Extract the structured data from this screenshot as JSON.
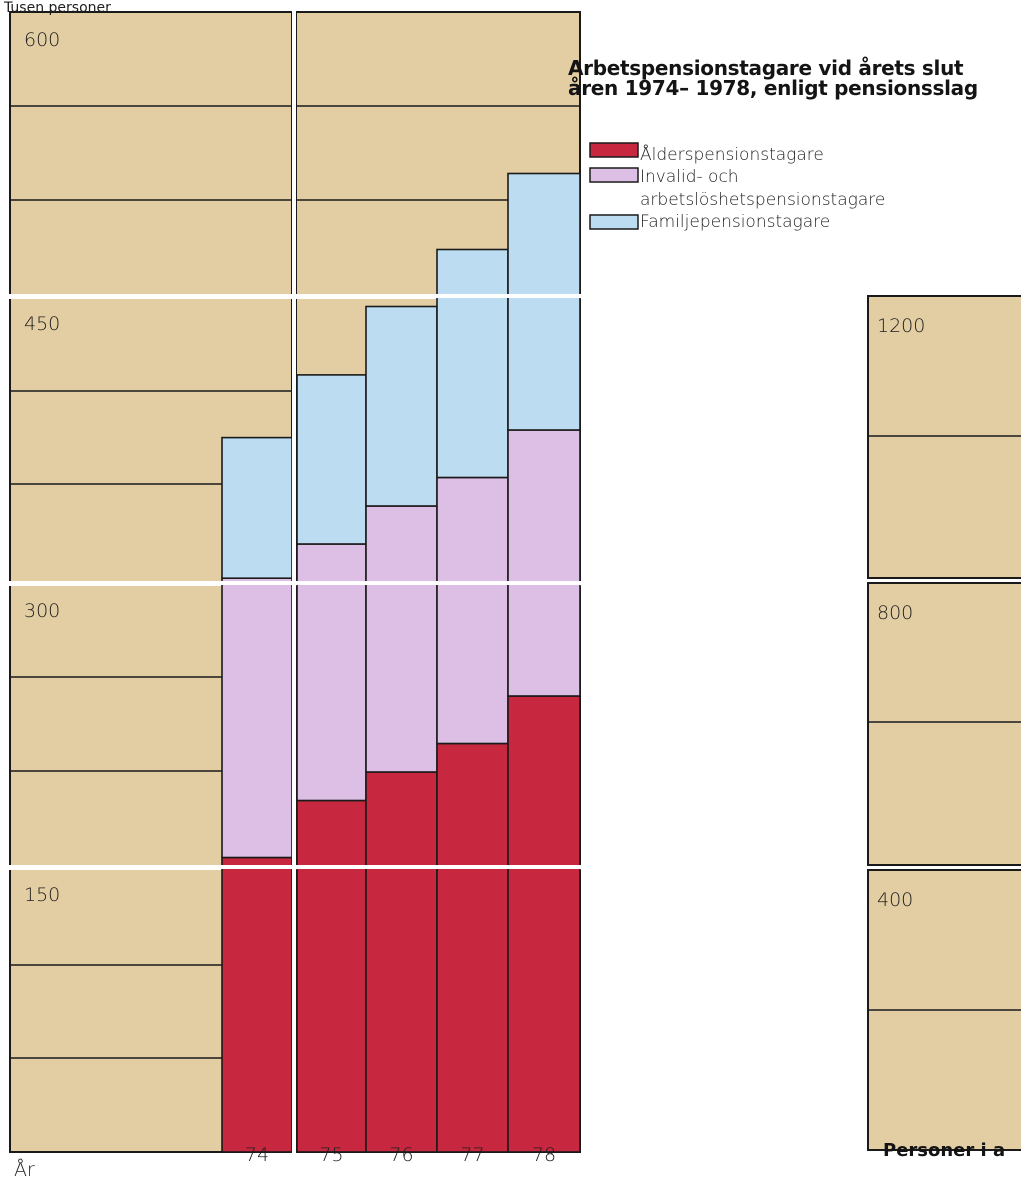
{
  "chart_data": {
    "type": "bar",
    "stacked": true,
    "title_lines": [
      "Arbetspensionstagare vid årets slut",
      "åren 1974– 1978, enligt pensionsslag"
    ],
    "ylabel": "Tusen personer",
    "xlabel": "År",
    "ylim": [
      0,
      600
    ],
    "y_ticks": [
      "150",
      "300",
      "450",
      "600"
    ],
    "categories": [
      "74",
      "75",
      "76",
      "77",
      "78"
    ],
    "series": [
      {
        "name": "Ålderspensionstagare",
        "color": "#c8283f",
        "values": [
          155,
          185,
          200,
          215,
          240
        ]
      },
      {
        "name": "Invalid- och arbetslöshetspensionstagare",
        "color": "#ddbfe5",
        "values": [
          147,
          135,
          140,
          140,
          140
        ]
      },
      {
        "name": "Familjepensionstagare",
        "color": "#bcdcf2",
        "values": [
          74,
          89,
          105,
          120,
          135
        ]
      }
    ],
    "legend_lines": [
      [
        "Ålderspensionstagare"
      ],
      [
        "Invalid- och",
        "arbetslöshetspensionstagare"
      ],
      [
        "Familjepensionstagare"
      ]
    ],
    "legend_position": "top-right",
    "grid": true,
    "colors": {
      "background": "#e3cea4",
      "panel_border": "#1a1a1a"
    }
  },
  "secondary_chart": {
    "y_ticks": [
      "400",
      "800",
      "1200"
    ],
    "caption": "Personer i a"
  }
}
